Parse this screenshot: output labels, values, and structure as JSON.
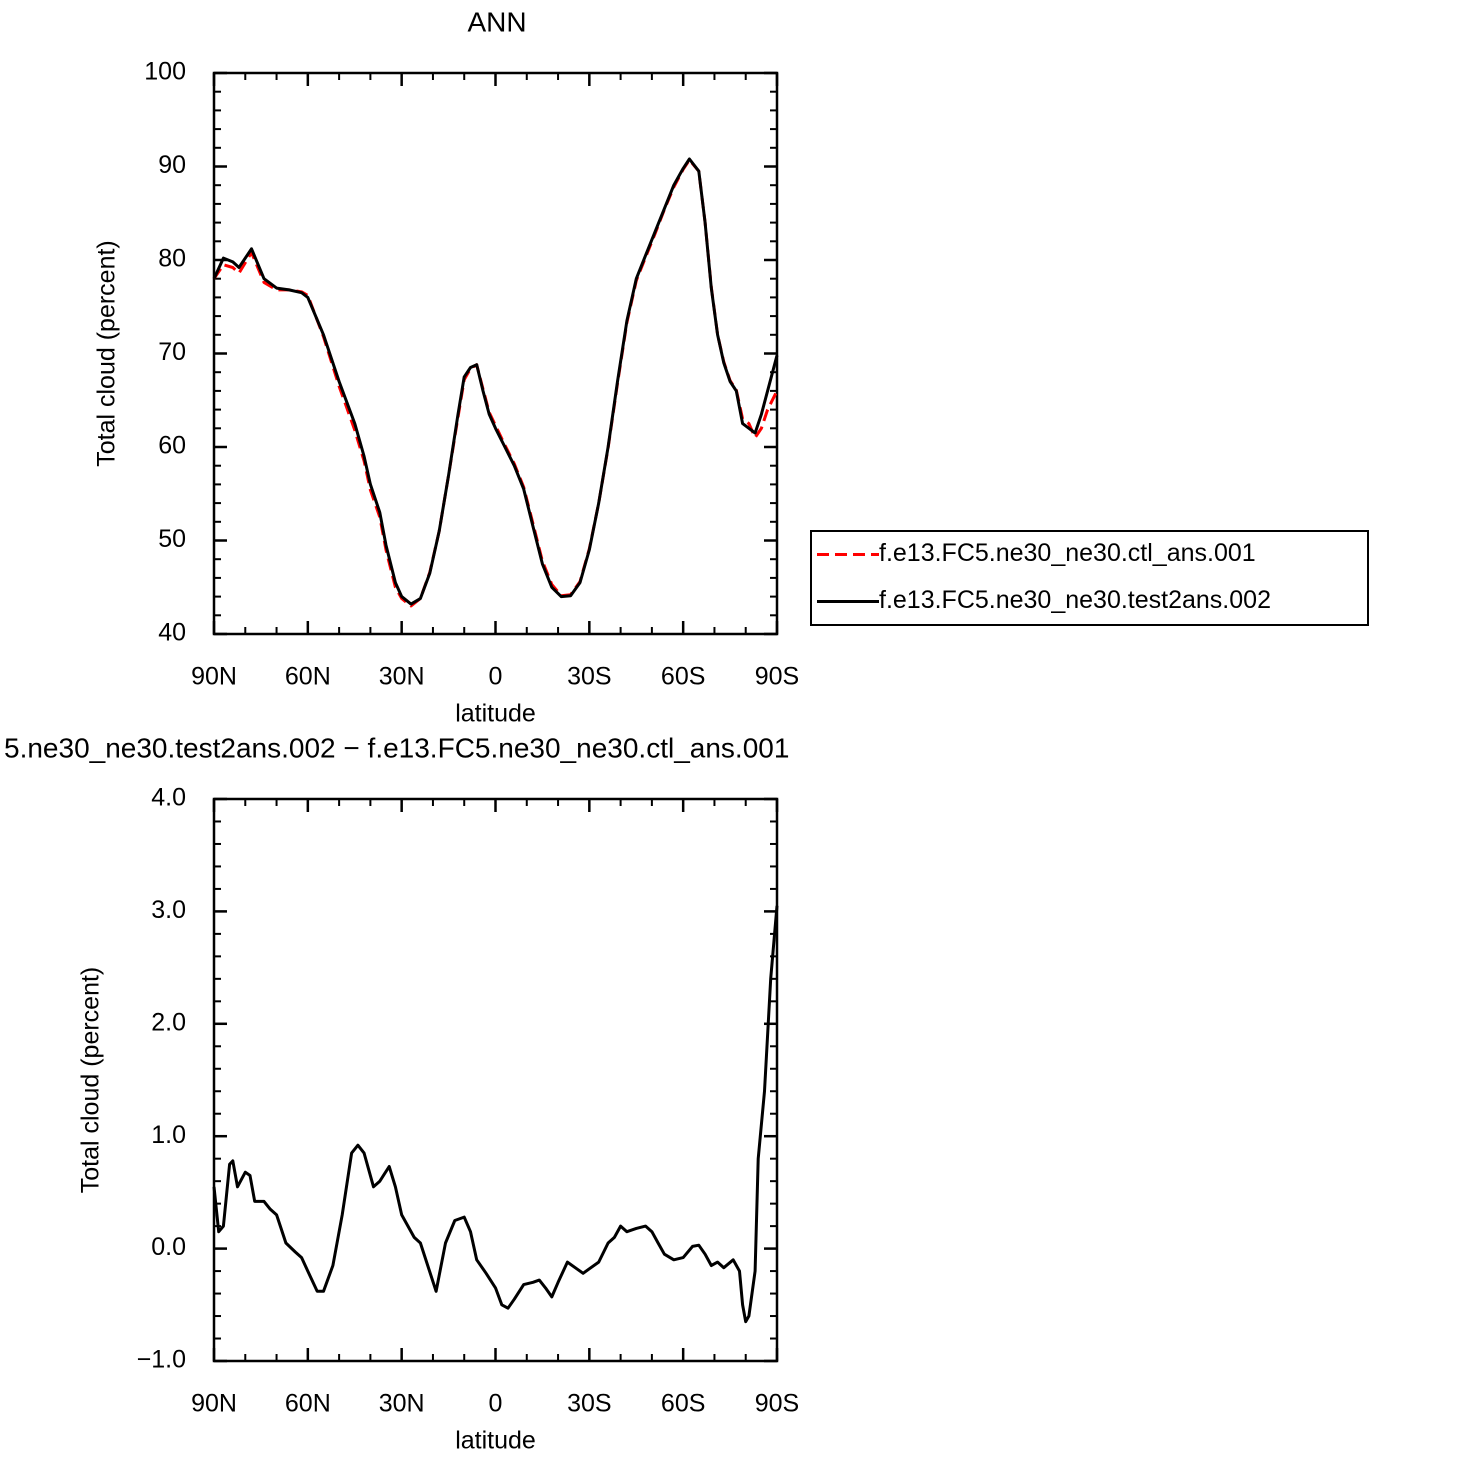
{
  "chart_data": [
    {
      "type": "line",
      "title": "ANN",
      "x_label": "latitude",
      "y_label": "Total cloud (percent)",
      "xlim": [
        90,
        -90
      ],
      "xticks": [
        {
          "value": 90,
          "label": "90N"
        },
        {
          "value": 60,
          "label": "60N"
        },
        {
          "value": 30,
          "label": "30N"
        },
        0,
        {
          "value": -30,
          "label": "30S"
        },
        {
          "value": -60,
          "label": "60S"
        },
        {
          "value": -90,
          "label": "90S"
        }
      ],
      "ylim": [
        40,
        100
      ],
      "yticks": [
        40,
        50,
        60,
        70,
        80,
        90,
        100
      ],
      "legend": "right",
      "x": [
        90,
        87,
        84,
        82,
        78,
        74,
        70,
        66,
        62,
        60,
        55,
        50,
        45,
        42,
        40,
        37,
        35,
        32,
        30,
        27,
        24,
        21,
        18,
        15,
        12,
        10,
        8,
        6,
        4,
        2,
        0,
        -3,
        -6,
        -9,
        -12,
        -15,
        -18,
        -21,
        -24,
        -27,
        -30,
        -33,
        -36,
        -39,
        -42,
        -45,
        -48,
        -51,
        -54,
        -57,
        -60,
        -62,
        -65,
        -67,
        -69,
        -71,
        -73,
        -75,
        -77,
        -79,
        -81,
        -83,
        -85,
        -87,
        -90
      ],
      "series": [
        {
          "name": "f.e13.FC5.ne30_ne30.ctl_ans.001",
          "color": "#ff0000",
          "line_style": "dashed",
          "values": [
            78,
            79.5,
            79.2,
            78.6,
            80.8,
            77.6,
            76.8,
            76.8,
            76.6,
            76.2,
            71.8,
            66.5,
            61.8,
            58.5,
            55.4,
            52.5,
            49,
            45,
            43.8,
            43,
            43.8,
            46.6,
            51,
            57,
            63.2,
            67.2,
            68.4,
            68.8,
            66.2,
            63.7,
            62.3,
            60.2,
            58.2,
            55.7,
            51.8,
            47.8,
            45.3,
            44.1,
            44.2,
            45.6,
            49.1,
            54,
            59.9,
            66.8,
            73.3,
            77.8,
            80.3,
            82.8,
            85.4,
            87.8,
            89.7,
            90.7,
            89.5,
            84,
            77.1,
            72,
            69.1,
            67.1,
            66.1,
            63,
            62.5,
            61,
            62,
            64,
            66
          ]
        },
        {
          "name": "f.e13.FC5.ne30_ne30.test2ans.002",
          "color": "#000000",
          "line_style": "solid",
          "values": [
            78,
            80.2,
            79.8,
            79.2,
            81.2,
            78,
            77,
            76.8,
            76.5,
            76,
            72,
            67,
            62.5,
            59,
            56,
            53,
            49.5,
            45.5,
            44,
            43.2,
            43.8,
            46.5,
            51,
            57,
            63.5,
            67.5,
            68.5,
            68.8,
            66,
            63.5,
            62,
            60,
            58,
            55.5,
            51.5,
            47.5,
            45,
            44,
            44.1,
            45.5,
            49,
            54,
            60,
            67,
            73.5,
            78,
            80.5,
            83,
            85.5,
            88,
            89.8,
            90.8,
            89.5,
            84,
            77,
            72,
            69,
            67,
            66,
            62.5,
            62,
            61.5,
            63.5,
            66,
            69.8
          ]
        }
      ]
    },
    {
      "type": "line",
      "title": "5.ne30_ne30.test2ans.002 − f.e13.FC5.ne30_ne30.ctl_ans.001",
      "x_label": "latitude",
      "y_label": "Total cloud (percent)",
      "xlim": [
        90,
        -90
      ],
      "xticks": [
        {
          "value": 90,
          "label": "90N"
        },
        {
          "value": 60,
          "label": "60N"
        },
        {
          "value": 30,
          "label": "30N"
        },
        0,
        {
          "value": -30,
          "label": "30S"
        },
        {
          "value": -60,
          "label": "60S"
        },
        {
          "value": -90,
          "label": "90S"
        }
      ],
      "ylim": [
        -1,
        4
      ],
      "yticks": [
        {
          "value": -1,
          "label": "−1.0"
        },
        {
          "value": 0,
          "label": "0.0"
        },
        {
          "value": 1,
          "label": "1.0"
        },
        {
          "value": 2,
          "label": "2.0"
        },
        {
          "value": 3,
          "label": "3.0"
        },
        {
          "value": 4,
          "label": "4.0"
        }
      ],
      "color": "#000000",
      "x": [
        90,
        88.5,
        87,
        85,
        84,
        82.5,
        80,
        78.5,
        77,
        74,
        72,
        70,
        67,
        64,
        62,
        60,
        57,
        55,
        52,
        49,
        46,
        44,
        42,
        39,
        37,
        34,
        32,
        30,
        26,
        24,
        19,
        16,
        13,
        10,
        8,
        6,
        3,
        0,
        -2,
        -4,
        -6,
        -9,
        -12,
        -14,
        -16,
        -18,
        -20,
        -23,
        -26,
        -28,
        -30,
        -33,
        -36,
        -38,
        -40,
        -42,
        -45,
        -48,
        -50,
        -52,
        -54,
        -57,
        -60,
        -63,
        -65,
        -67,
        -69,
        -71,
        -73,
        -76,
        -78,
        -79,
        -80,
        -81,
        -83,
        -84,
        -86,
        -88,
        -90
      ],
      "values": [
        0.55,
        0.15,
        0.2,
        0.75,
        0.78,
        0.55,
        0.68,
        0.65,
        0.42,
        0.42,
        0.35,
        0.3,
        0.05,
        -0.03,
        -0.08,
        -0.2,
        -0.38,
        -0.38,
        -0.15,
        0.3,
        0.85,
        0.92,
        0.85,
        0.55,
        0.6,
        0.73,
        0.55,
        0.3,
        0.1,
        0.05,
        -0.38,
        0.05,
        0.25,
        0.28,
        0.15,
        -0.1,
        -0.22,
        -0.35,
        -0.5,
        -0.53,
        -0.45,
        -0.32,
        -0.3,
        -0.28,
        -0.35,
        -0.43,
        -0.3,
        -0.12,
        -0.18,
        -0.22,
        -0.18,
        -0.12,
        0.05,
        0.1,
        0.2,
        0.15,
        0.18,
        0.2,
        0.15,
        0.05,
        -0.05,
        -0.1,
        -0.08,
        0.02,
        0.03,
        -0.05,
        -0.15,
        -0.12,
        -0.17,
        -0.1,
        -0.2,
        -0.5,
        -0.65,
        -0.6,
        -0.2,
        0.8,
        1.4,
        2.4,
        3.05
      ]
    }
  ]
}
